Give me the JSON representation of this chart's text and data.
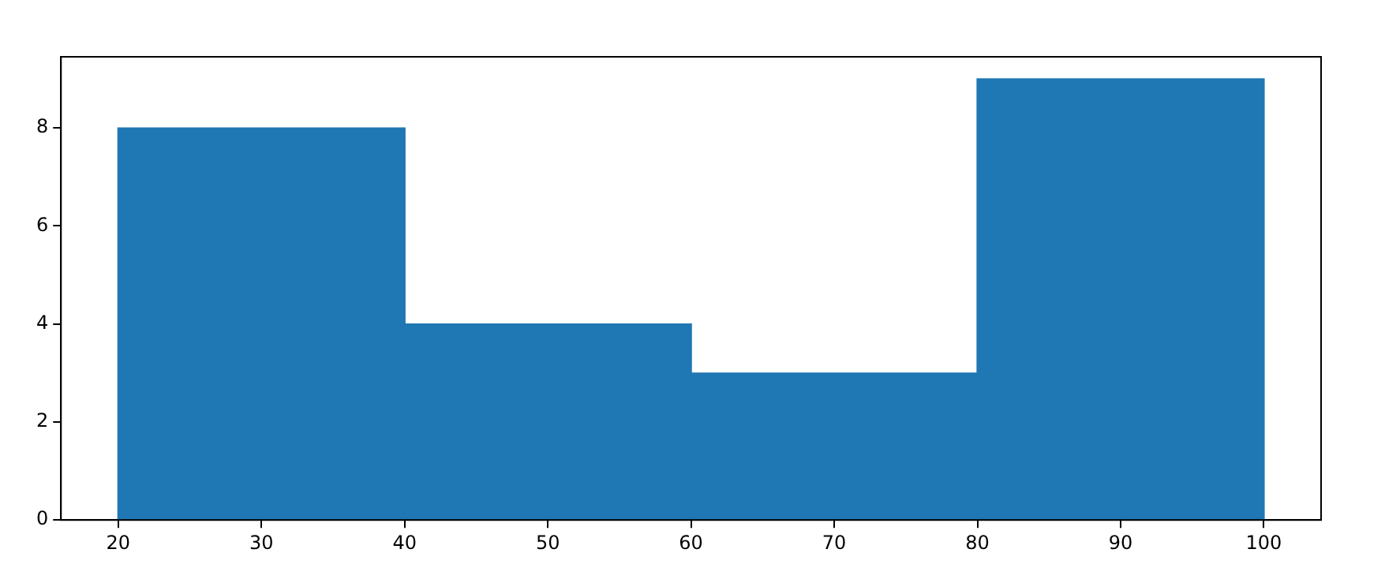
{
  "chart_data": {
    "type": "histogram",
    "bins": [
      20,
      40,
      60,
      80,
      100
    ],
    "values": [
      8,
      4,
      3,
      9
    ],
    "color": "#1f77b4",
    "xlim": [
      16,
      104
    ],
    "ylim": [
      0,
      9.45
    ],
    "xticks": [
      20,
      30,
      40,
      50,
      60,
      70,
      80,
      90,
      100
    ],
    "yticks": [
      0,
      2,
      4,
      6,
      8
    ],
    "grid": false,
    "legend": false
  }
}
